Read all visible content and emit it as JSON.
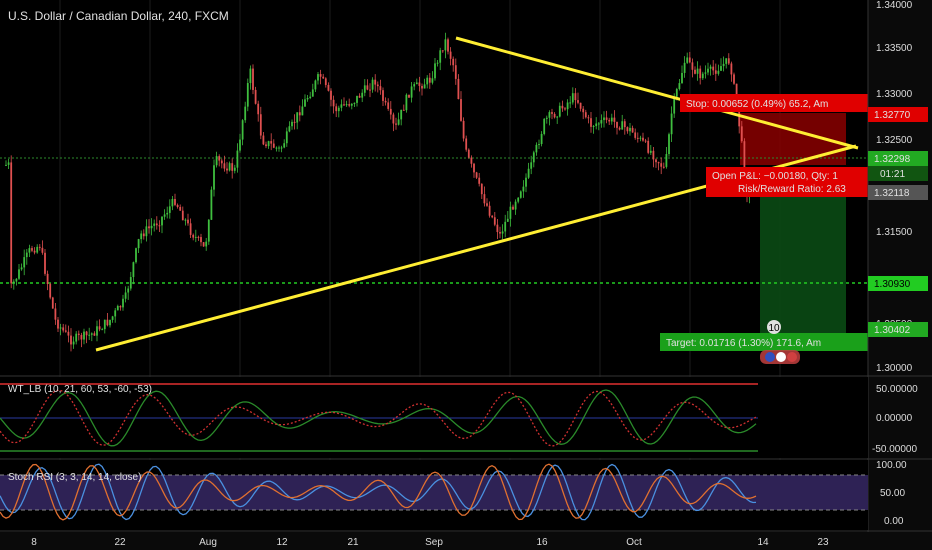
{
  "header": {
    "symbol_title": "U.S. Dollar / Canadian Dollar, 240, FXCM"
  },
  "price_axis": {
    "ticks": [
      "1.34000",
      "1.33500",
      "1.33000",
      "1.32500",
      "1.31500",
      "1.30500",
      "1.30000"
    ]
  },
  "price_tags": {
    "stop": "1.32770",
    "last": "1.32298",
    "countdown": "01:21",
    "entry": "1.32118",
    "support": "1.30930",
    "target": "1.30402"
  },
  "position_labels": {
    "stop": "Stop: 0.00652 (0.49%) 65.2, Am",
    "open_pl": "Open P&L: −0.00180, Qty: 1",
    "risk_reward": "Risk/Reward Ratio: 2.63",
    "target": "Target: 0.01716 (1.30%) 171.6, Am"
  },
  "event_badge": "10",
  "wt_panel": {
    "title": "WT_LB (10, 21, 60, 53, -60, -53)",
    "ticks": [
      "50.00000",
      "0.00000",
      "-50.00000"
    ]
  },
  "rsi_panel": {
    "title": "Stoch RSI (3, 3, 14, 14, close)",
    "ticks": [
      "100.00",
      "50.00",
      "0.00"
    ]
  },
  "time_axis": {
    "labels": [
      "8",
      "22",
      "Aug",
      "12",
      "21",
      "Sep",
      "16",
      "Oct",
      "14",
      "23"
    ]
  },
  "colors": {
    "background": "#000000",
    "up_candle": "#3fbf3f",
    "down_candle": "#e05050",
    "trendline": "#ffee33",
    "support_line": "#22cc22",
    "stop_zone": "#b40000",
    "target_zone": "#0a4a14",
    "stoch_fill": "#3a2a6a"
  }
}
